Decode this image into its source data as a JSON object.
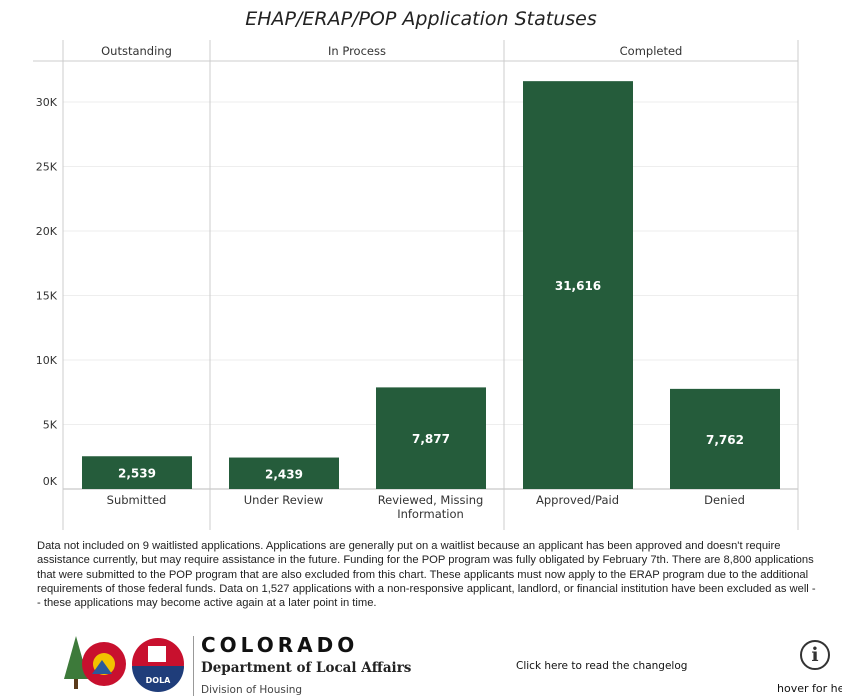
{
  "chart_data": {
    "type": "bar",
    "title": "EHAP/ERAP/POP Application Statuses",
    "groups": [
      {
        "label": "Outstanding",
        "categories": [
          "Submitted"
        ]
      },
      {
        "label": "In Process",
        "categories": [
          "Under Review",
          "Reviewed, Missing Information"
        ]
      },
      {
        "label": "Completed",
        "categories": [
          "Approved/Paid",
          "Denied"
        ]
      }
    ],
    "categories": [
      "Submitted",
      "Under Review",
      "Reviewed, Missing Information",
      "Approved/Paid",
      "Denied"
    ],
    "values": [
      2539,
      2439,
      7877,
      31616,
      7762
    ],
    "value_labels": [
      "2,539",
      "2,439",
      "7,877",
      "31,616",
      "7,762"
    ],
    "yticks": [
      "0K",
      "5K",
      "10K",
      "15K",
      "20K",
      "25K",
      "30K"
    ],
    "ytick_values": [
      0,
      5000,
      10000,
      15000,
      20000,
      25000,
      30000
    ],
    "ylim": [
      0,
      30000
    ],
    "grid": true,
    "bar_color": "#255c3b"
  },
  "note": "Data not included on 9 waitlisted applications. Applications are generally put on a waitlist because an applicant has been approved and doesn't require assistance currently, but may require assistance  in the future. Funding for the POP program was fully obligated by February 7th. There are 8,800 applications that were submitted to the POP program that are also excluded from this chart. These applicants must now apply to the ERAP program due to the additional requirements of those federal funds. Data on 1,527 applications with a non-responsive applicant, landlord, or financial institution have been excluded as well -- these applications may become active again at a later point in time.",
  "footer": {
    "logo_text": "DOLA",
    "org_name": "COLORADO",
    "department": "Department of Local Affairs",
    "division": "Division of Housing",
    "changelog_link": "Click here to read the changelog",
    "info_icon": "info-circle-icon",
    "hover_text": "hover for he"
  }
}
